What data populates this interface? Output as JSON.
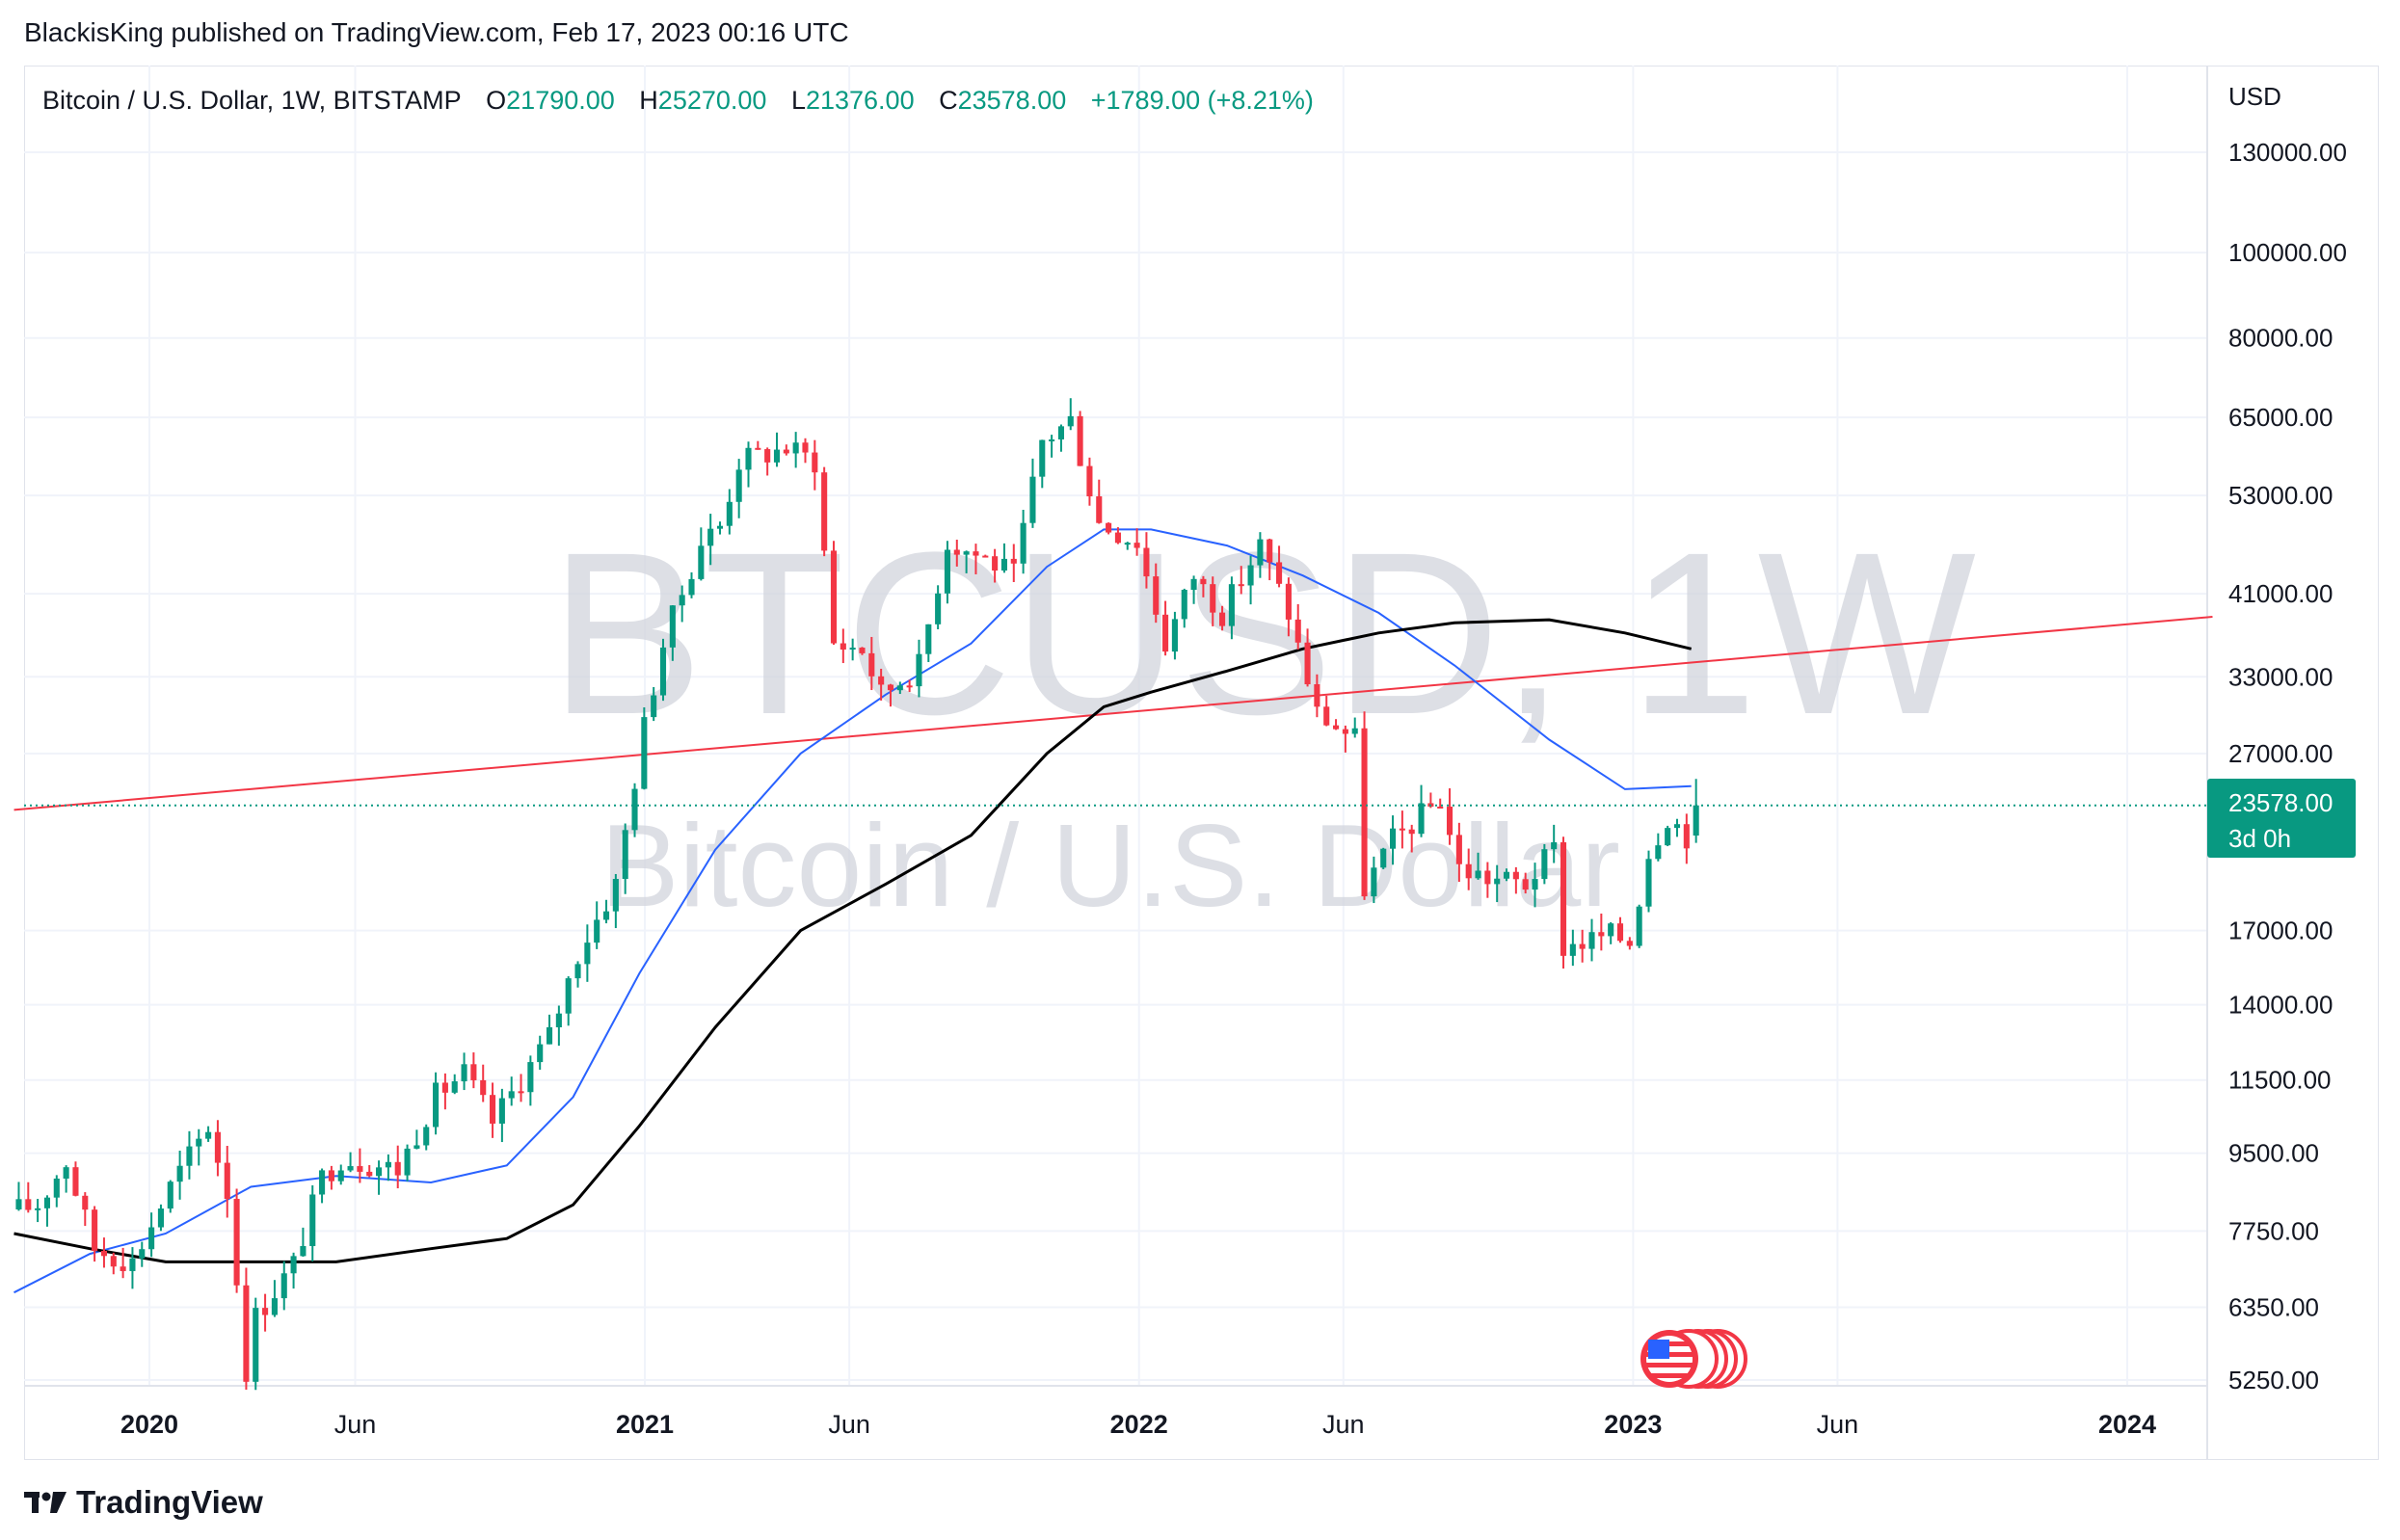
{
  "header": {
    "published_text": "BlackisKing published on TradingView.com, Feb 17, 2023 00:16 UTC"
  },
  "legend": {
    "symbol": "Bitcoin / U.S. Dollar, 1W, BITSTAMP",
    "open_label": "O",
    "open_value": "21790.00",
    "high_label": "H",
    "high_value": "25270.00",
    "low_label": "L",
    "low_value": "21376.00",
    "close_label": "C",
    "close_value": "23578.00",
    "change_value": "+1789.00 (+8.21%)"
  },
  "watermark": {
    "ticker": "BTCUSD, 1W",
    "name": "Bitcoin / U.S. Dollar"
  },
  "price_axis": {
    "currency": "USD",
    "last_price_label": "23578.00",
    "countdown_label": "3d 0h"
  },
  "footer": {
    "brand": "TradingView"
  },
  "colors": {
    "up": "#089981",
    "down": "#f23645",
    "ma_fast": "#2962ff",
    "ma_slow": "#000000",
    "trendline": "#f23645",
    "grid": "#f0f3fa",
    "price_badge": "#089981"
  },
  "chart_data": {
    "type": "candlestick",
    "scale": "log",
    "symbol": "BTCUSD",
    "interval": "1W",
    "y_ticks": [
      130000,
      100000,
      80000,
      65000,
      53000,
      41000,
      33000,
      27000,
      17000,
      14000,
      11500,
      9500,
      7750,
      6350,
      5250
    ],
    "y_tick_labels": [
      "130000.00",
      "100000.00",
      "80000.00",
      "65000.00",
      "53000.00",
      "41000.00",
      "33000.00",
      "27000.00",
      "17000.00",
      "14000.00",
      "11500.00",
      "9500.00",
      "7750.00",
      "6350.00",
      "5250.00"
    ],
    "x_ticks": [
      {
        "label": "2020",
        "date": "2020-01-01",
        "bold": true
      },
      {
        "label": "Jun",
        "date": "2020-06-01",
        "bold": false
      },
      {
        "label": "2021",
        "date": "2021-01-01",
        "bold": true
      },
      {
        "label": "Jun",
        "date": "2021-06-01",
        "bold": false
      },
      {
        "label": "2022",
        "date": "2022-01-01",
        "bold": true
      },
      {
        "label": "Jun",
        "date": "2022-06-01",
        "bold": false
      },
      {
        "label": "2023",
        "date": "2023-01-01",
        "bold": true
      },
      {
        "label": "Jun",
        "date": "2023-06-01",
        "bold": false
      },
      {
        "label": "2024",
        "date": "2024-01-01",
        "bold": true
      }
    ],
    "first_candle_date": "2019-09-23",
    "close_path": [
      [
        "2019-09-23",
        8200
      ],
      [
        "2019-10-07",
        8300
      ],
      [
        "2019-10-28",
        9300
      ],
      [
        "2019-11-18",
        7400
      ],
      [
        "2019-12-16",
        7150
      ],
      [
        "2020-01-13",
        8700
      ],
      [
        "2020-02-10",
        10200
      ],
      [
        "2020-02-24",
        8600
      ],
      [
        "2020-03-09",
        5400
      ],
      [
        "2020-03-16",
        6200
      ],
      [
        "2020-04-13",
        7100
      ],
      [
        "2020-05-04",
        8900
      ],
      [
        "2020-05-18",
        9400
      ],
      [
        "2020-06-29",
        9100
      ],
      [
        "2020-07-27",
        11050
      ],
      [
        "2020-08-17",
        11700
      ],
      [
        "2020-09-07",
        10300
      ],
      [
        "2020-10-19",
        12900
      ],
      [
        "2020-11-09",
        16000
      ],
      [
        "2020-12-07",
        19200
      ],
      [
        "2020-12-28",
        29000
      ],
      [
        "2021-01-11",
        36000
      ],
      [
        "2021-02-08",
        47000
      ],
      [
        "2021-02-22",
        49000
      ],
      [
        "2021-03-08",
        58000
      ],
      [
        "2021-04-12",
        60000
      ],
      [
        "2021-05-03",
        58000
      ],
      [
        "2021-05-17",
        36000
      ],
      [
        "2021-06-07",
        35500
      ],
      [
        "2021-06-21",
        31500
      ],
      [
        "2021-07-19",
        34000
      ],
      [
        "2021-08-09",
        47000
      ],
      [
        "2021-09-06",
        45000
      ],
      [
        "2021-09-27",
        43000
      ],
      [
        "2021-10-18",
        61000
      ],
      [
        "2021-11-08",
        64500
      ],
      [
        "2021-11-29",
        49400
      ],
      [
        "2021-12-27",
        47000
      ],
      [
        "2022-01-17",
        36000
      ],
      [
        "2022-02-07",
        43000
      ],
      [
        "2022-02-28",
        39000
      ],
      [
        "2022-03-28",
        46500
      ],
      [
        "2022-04-18",
        39000
      ],
      [
        "2022-05-09",
        30000
      ],
      [
        "2022-06-06",
        28000
      ],
      [
        "2022-06-13",
        19000
      ],
      [
        "2022-07-04",
        21500
      ],
      [
        "2022-08-08",
        24000
      ],
      [
        "2022-08-22",
        20000
      ],
      [
        "2022-09-12",
        19500
      ],
      [
        "2022-10-10",
        19200
      ],
      [
        "2022-10-31",
        21000
      ],
      [
        "2022-11-07",
        16300
      ],
      [
        "2022-12-12",
        16800
      ],
      [
        "2022-12-26",
        16550
      ],
      [
        "2023-01-09",
        20900
      ],
      [
        "2023-01-23",
        23000
      ],
      [
        "2023-02-06",
        21790
      ],
      [
        "2023-02-13",
        23578
      ]
    ],
    "last_candle": {
      "date": "2023-02-13",
      "open": 21790,
      "high": 25270,
      "low": 21376,
      "close": 23578
    },
    "series": [
      {
        "name": "",
        "type": "line",
        "note": "fast moving average",
        "points": [
          [
            "2019-09-23",
            6600
          ],
          [
            "2019-11-18",
            7300
          ],
          [
            "2020-01-13",
            7700
          ],
          [
            "2020-03-16",
            8700
          ],
          [
            "2020-05-18",
            8950
          ],
          [
            "2020-07-27",
            8800
          ],
          [
            "2020-09-21",
            9200
          ],
          [
            "2020-11-09",
            11000
          ],
          [
            "2020-12-28",
            15200
          ],
          [
            "2021-02-22",
            21000
          ],
          [
            "2021-04-26",
            27000
          ],
          [
            "2021-06-28",
            31500
          ],
          [
            "2021-08-30",
            36000
          ],
          [
            "2021-10-25",
            44000
          ],
          [
            "2021-12-06",
            48500
          ],
          [
            "2022-01-10",
            48500
          ],
          [
            "2022-03-07",
            46500
          ],
          [
            "2022-05-02",
            43000
          ],
          [
            "2022-06-27",
            39000
          ],
          [
            "2022-08-22",
            34000
          ],
          [
            "2022-10-31",
            28000
          ],
          [
            "2022-12-26",
            24600
          ],
          [
            "2023-02-13",
            24800
          ]
        ]
      },
      {
        "name": "",
        "type": "line",
        "note": "slow moving average",
        "points": [
          [
            "2019-09-23",
            7700
          ],
          [
            "2019-11-18",
            7400
          ],
          [
            "2020-01-13",
            7150
          ],
          [
            "2020-03-16",
            7150
          ],
          [
            "2020-05-18",
            7150
          ],
          [
            "2020-07-27",
            7400
          ],
          [
            "2020-09-21",
            7600
          ],
          [
            "2020-11-09",
            8300
          ],
          [
            "2020-12-28",
            10200
          ],
          [
            "2021-02-22",
            13200
          ],
          [
            "2021-04-26",
            17000
          ],
          [
            "2021-06-28",
            19200
          ],
          [
            "2021-08-30",
            21800
          ],
          [
            "2021-10-25",
            27000
          ],
          [
            "2021-12-06",
            30500
          ],
          [
            "2022-01-10",
            31700
          ],
          [
            "2022-03-07",
            33500
          ],
          [
            "2022-05-02",
            35500
          ],
          [
            "2022-06-27",
            37000
          ],
          [
            "2022-08-22",
            38000
          ],
          [
            "2022-10-31",
            38300
          ],
          [
            "2022-12-26",
            37000
          ],
          [
            "2023-02-13",
            35500
          ]
        ]
      }
    ],
    "trendline": {
      "start": [
        "2019-09-23",
        23300
      ],
      "end": [
        "2024-03-04",
        38600
      ]
    },
    "last_price_line": 23578
  }
}
